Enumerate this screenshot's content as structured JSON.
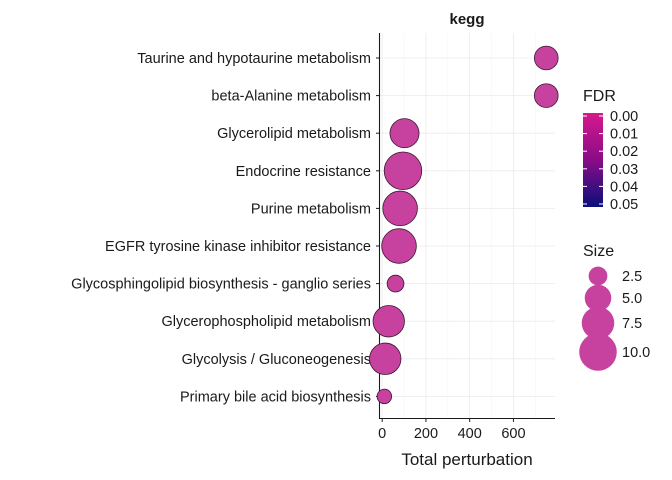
{
  "chart_data": {
    "type": "scatter",
    "title": "kegg",
    "xlabel": "Total perturbation",
    "ylabel": "",
    "xlim": [
      -10,
      790
    ],
    "x_ticks": [
      0,
      200,
      400,
      600
    ],
    "x_tick_labels": [
      "0",
      "200",
      "400",
      "600"
    ],
    "grid": true,
    "categories": [
      "Taurine and hypotaurine metabolism",
      "beta-Alanine metabolism",
      "Glycerolipid metabolism",
      "Endocrine resistance",
      "Purine metabolism",
      "EGFR tyrosine kinase inhibitor resistance",
      "Glycosphingolipid biosynthesis - ganglio series",
      "Glycerophospholipid metabolism",
      "Glycolysis / Gluconeogenesis",
      "Primary bile acid biosynthesis"
    ],
    "points": [
      {
        "pathway": "Taurine and hypotaurine metabolism",
        "x": 750,
        "size": 4,
        "fdr": 0.0
      },
      {
        "pathway": "beta-Alanine metabolism",
        "x": 750,
        "size": 4,
        "fdr": 0.0
      },
      {
        "pathway": "Glycerolipid metabolism",
        "x": 102,
        "size": 6,
        "fdr": 0.0
      },
      {
        "pathway": "Endocrine resistance",
        "x": 95,
        "size": 10,
        "fdr": 0.0
      },
      {
        "pathway": "Purine metabolism",
        "x": 82,
        "size": 8.5,
        "fdr": 0.0
      },
      {
        "pathway": "EGFR tyrosine kinase inhibitor resistance",
        "x": 77,
        "size": 8.5,
        "fdr": 0.0
      },
      {
        "pathway": "Glycosphingolipid biosynthesis - ganglio series",
        "x": 61,
        "size": 2,
        "fdr": 0.0
      },
      {
        "pathway": "Glycerophospholipid metabolism",
        "x": 30,
        "size": 7,
        "fdr": 0.0
      },
      {
        "pathway": "Glycolysis / Gluconeogenesis",
        "x": 14,
        "size": 7,
        "fdr": 0.0
      },
      {
        "pathway": "Primary bile acid biosynthesis",
        "x": 10,
        "size": 1.5,
        "fdr": 0.0
      }
    ],
    "legend": {
      "color": {
        "title": "FDR",
        "ticks": [
          0.0,
          0.01,
          0.02,
          0.03,
          0.04,
          0.05
        ],
        "tick_labels": [
          "0.00",
          "0.01",
          "0.02",
          "0.03",
          "0.04",
          "0.05"
        ],
        "low_color": "#d6198c",
        "mid_color": "#8a0c88",
        "high_color": "#0a0f7a"
      },
      "size": {
        "title": "Size",
        "values": [
          2.5,
          5.0,
          7.5,
          10.0
        ],
        "labels": [
          "2.5",
          "5.0",
          "7.5",
          "10.0"
        ]
      }
    },
    "point_fill": "#c7419f",
    "point_stroke": "#3a1a34"
  }
}
